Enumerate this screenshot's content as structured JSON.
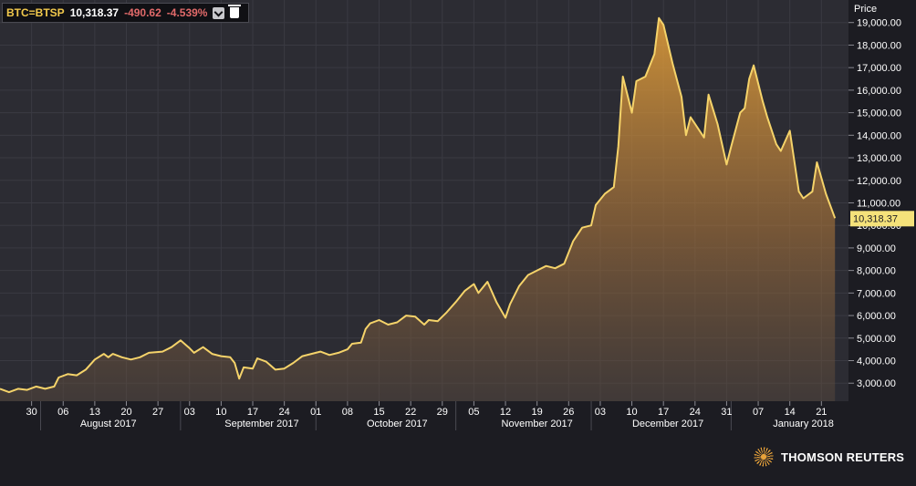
{
  "legend": {
    "symbol": "BTC=BTSP",
    "last": "10,318.37",
    "change": "-490.62",
    "change_pct": "-4.539%"
  },
  "colors": {
    "line": "#f5d36a",
    "fill_top": "#e8a23a",
    "last_badge": "#f5e27a",
    "background": "#2b2b32"
  },
  "brand": "THOMSON REUTERS",
  "chart_data": {
    "type": "area",
    "ylabel": "Price",
    "ylim": [
      2200,
      20000
    ],
    "yticks": [
      3000,
      4000,
      5000,
      6000,
      7000,
      8000,
      9000,
      10000,
      11000,
      12000,
      13000,
      14000,
      15000,
      16000,
      17000,
      18000,
      19000
    ],
    "ytick_labels": [
      "3,000.00",
      "4,000.00",
      "5,000.00",
      "6,000.00",
      "7,000.00",
      "8,000.00",
      "9,000.00",
      "10,000.00",
      "11,000.00",
      "12,000.00",
      "13,000.00",
      "14,000.00",
      "15,000.00",
      "16,000.00",
      "17,000.00",
      "18,000.00",
      "19,000.00"
    ],
    "last_value_label": "10,318.37",
    "xlim": [
      "2017-07-23",
      "2018-01-27"
    ],
    "day_ticks": [
      {
        "date": "2017-07-30",
        "label": "30"
      },
      {
        "date": "2017-08-06",
        "label": "06"
      },
      {
        "date": "2017-08-13",
        "label": "13"
      },
      {
        "date": "2017-08-20",
        "label": "20"
      },
      {
        "date": "2017-08-27",
        "label": "27"
      },
      {
        "date": "2017-09-03",
        "label": "03"
      },
      {
        "date": "2017-09-10",
        "label": "10"
      },
      {
        "date": "2017-09-17",
        "label": "17"
      },
      {
        "date": "2017-09-24",
        "label": "24"
      },
      {
        "date": "2017-10-01",
        "label": "01"
      },
      {
        "date": "2017-10-08",
        "label": "08"
      },
      {
        "date": "2017-10-15",
        "label": "15"
      },
      {
        "date": "2017-10-22",
        "label": "22"
      },
      {
        "date": "2017-10-29",
        "label": "29"
      },
      {
        "date": "2017-11-05",
        "label": "05"
      },
      {
        "date": "2017-11-12",
        "label": "12"
      },
      {
        "date": "2017-11-19",
        "label": "19"
      },
      {
        "date": "2017-11-26",
        "label": "26"
      },
      {
        "date": "2017-12-03",
        "label": "03"
      },
      {
        "date": "2017-12-10",
        "label": "10"
      },
      {
        "date": "2017-12-17",
        "label": "17"
      },
      {
        "date": "2017-12-24",
        "label": "24"
      },
      {
        "date": "2017-12-31",
        "label": "31"
      },
      {
        "date": "2018-01-07",
        "label": "07"
      },
      {
        "date": "2018-01-14",
        "label": "14"
      },
      {
        "date": "2018-01-21",
        "label": "21"
      }
    ],
    "month_labels": [
      {
        "date": "2017-08-16",
        "label": "August 2017"
      },
      {
        "date": "2017-09-19",
        "label": "September 2017"
      },
      {
        "date": "2017-10-19",
        "label": "October 2017"
      },
      {
        "date": "2017-11-19",
        "label": "November 2017"
      },
      {
        "date": "2017-12-18",
        "label": "December 2017"
      },
      {
        "date": "2018-01-17",
        "label": "January 2018"
      }
    ],
    "month_boundaries": [
      "2017-08-01",
      "2017-09-01",
      "2017-10-01",
      "2017-11-01",
      "2017-12-01",
      "2018-01-01"
    ],
    "series": [
      {
        "values": [
          [
            "2017-07-23",
            2750
          ],
          [
            "2017-07-25",
            2600
          ],
          [
            "2017-07-27",
            2750
          ],
          [
            "2017-07-29",
            2700
          ],
          [
            "2017-07-31",
            2850
          ],
          [
            "2017-08-02",
            2750
          ],
          [
            "2017-08-04",
            2850
          ],
          [
            "2017-08-05",
            3250
          ],
          [
            "2017-08-07",
            3400
          ],
          [
            "2017-08-09",
            3350
          ],
          [
            "2017-08-11",
            3600
          ],
          [
            "2017-08-13",
            4050
          ],
          [
            "2017-08-15",
            4300
          ],
          [
            "2017-08-16",
            4150
          ],
          [
            "2017-08-17",
            4300
          ],
          [
            "2017-08-19",
            4150
          ],
          [
            "2017-08-21",
            4050
          ],
          [
            "2017-08-23",
            4150
          ],
          [
            "2017-08-25",
            4350
          ],
          [
            "2017-08-28",
            4400
          ],
          [
            "2017-08-30",
            4600
          ],
          [
            "2017-09-01",
            4900
          ],
          [
            "2017-09-03",
            4550
          ],
          [
            "2017-09-04",
            4350
          ],
          [
            "2017-09-06",
            4600
          ],
          [
            "2017-09-08",
            4300
          ],
          [
            "2017-09-10",
            4200
          ],
          [
            "2017-09-12",
            4150
          ],
          [
            "2017-09-13",
            3900
          ],
          [
            "2017-09-14",
            3200
          ],
          [
            "2017-09-15",
            3700
          ],
          [
            "2017-09-17",
            3650
          ],
          [
            "2017-09-18",
            4100
          ],
          [
            "2017-09-20",
            3950
          ],
          [
            "2017-09-22",
            3600
          ],
          [
            "2017-09-24",
            3650
          ],
          [
            "2017-09-26",
            3900
          ],
          [
            "2017-09-28",
            4200
          ],
          [
            "2017-09-30",
            4300
          ],
          [
            "2017-10-02",
            4400
          ],
          [
            "2017-10-04",
            4250
          ],
          [
            "2017-10-06",
            4350
          ],
          [
            "2017-10-08",
            4500
          ],
          [
            "2017-10-09",
            4750
          ],
          [
            "2017-10-11",
            4800
          ],
          [
            "2017-10-12",
            5400
          ],
          [
            "2017-10-13",
            5650
          ],
          [
            "2017-10-15",
            5800
          ],
          [
            "2017-10-17",
            5600
          ],
          [
            "2017-10-19",
            5700
          ],
          [
            "2017-10-21",
            6000
          ],
          [
            "2017-10-23",
            5950
          ],
          [
            "2017-10-25",
            5600
          ],
          [
            "2017-10-26",
            5800
          ],
          [
            "2017-10-28",
            5750
          ],
          [
            "2017-10-30",
            6150
          ],
          [
            "2017-11-01",
            6600
          ],
          [
            "2017-11-03",
            7100
          ],
          [
            "2017-11-05",
            7400
          ],
          [
            "2017-11-06",
            7000
          ],
          [
            "2017-11-08",
            7500
          ],
          [
            "2017-11-10",
            6600
          ],
          [
            "2017-11-12",
            5900
          ],
          [
            "2017-11-13",
            6500
          ],
          [
            "2017-11-15",
            7300
          ],
          [
            "2017-11-17",
            7800
          ],
          [
            "2017-11-19",
            8000
          ],
          [
            "2017-11-21",
            8200
          ],
          [
            "2017-11-23",
            8100
          ],
          [
            "2017-11-25",
            8300
          ],
          [
            "2017-11-27",
            9300
          ],
          [
            "2017-11-29",
            9900
          ],
          [
            "2017-12-01",
            10000
          ],
          [
            "2017-12-02",
            10900
          ],
          [
            "2017-12-04",
            11400
          ],
          [
            "2017-12-06",
            11700
          ],
          [
            "2017-12-07",
            13500
          ],
          [
            "2017-12-08",
            16600
          ],
          [
            "2017-12-10",
            15000
          ],
          [
            "2017-12-11",
            16400
          ],
          [
            "2017-12-13",
            16600
          ],
          [
            "2017-12-15",
            17600
          ],
          [
            "2017-12-16",
            19200
          ],
          [
            "2017-12-17",
            18900
          ],
          [
            "2017-12-19",
            17200
          ],
          [
            "2017-12-21",
            15700
          ],
          [
            "2017-12-22",
            14000
          ],
          [
            "2017-12-23",
            14800
          ],
          [
            "2017-12-26",
            13900
          ],
          [
            "2017-12-27",
            15800
          ],
          [
            "2017-12-29",
            14500
          ],
          [
            "2017-12-31",
            12700
          ],
          [
            "2018-01-01",
            13500
          ],
          [
            "2018-01-03",
            15000
          ],
          [
            "2018-01-04",
            15200
          ],
          [
            "2018-01-05",
            16500
          ],
          [
            "2018-01-06",
            17100
          ],
          [
            "2018-01-08",
            15500
          ],
          [
            "2018-01-09",
            14800
          ],
          [
            "2018-01-11",
            13600
          ],
          [
            "2018-01-12",
            13300
          ],
          [
            "2018-01-14",
            14200
          ],
          [
            "2018-01-16",
            11500
          ],
          [
            "2018-01-17",
            11200
          ],
          [
            "2018-01-19",
            11500
          ],
          [
            "2018-01-20",
            12800
          ],
          [
            "2018-01-22",
            11400
          ],
          [
            "2018-01-24",
            10318
          ]
        ]
      }
    ]
  }
}
